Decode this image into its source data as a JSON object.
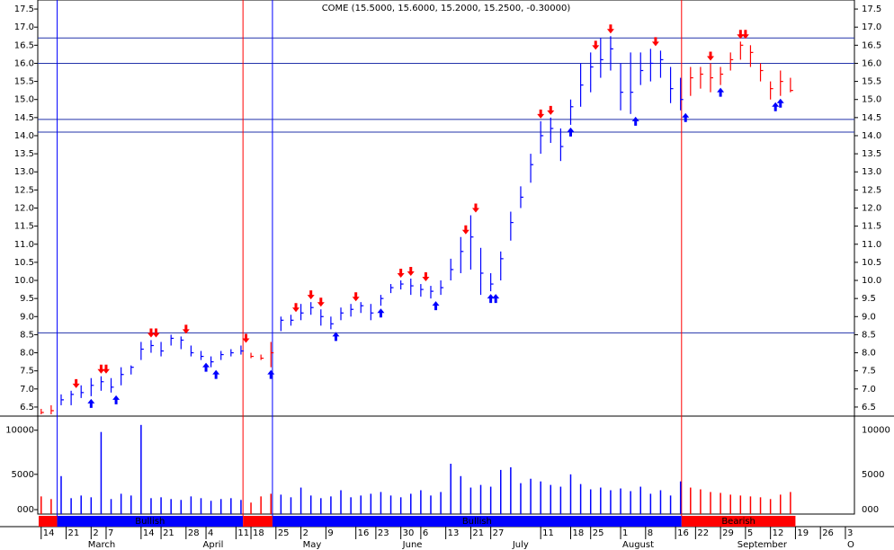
{
  "chart_data": {
    "type": "ohlc",
    "title": "COME (15.5000, 15.6000, 15.2000, 15.2500, -0.30000)",
    "x": [
      0,
      2,
      4,
      6,
      8,
      10,
      12,
      14,
      16,
      18,
      20,
      22,
      24,
      26,
      28,
      30,
      32,
      34,
      36,
      38,
      40,
      42,
      44,
      46,
      48,
      50,
      52,
      54,
      56,
      58,
      60,
      62,
      64,
      66,
      68,
      70,
      72,
      74,
      76,
      78,
      80,
      82,
      84,
      86,
      88,
      90,
      92,
      94,
      96,
      98,
      100,
      102,
      104,
      106,
      108,
      110,
      112,
      114,
      116,
      118,
      120,
      122,
      124,
      126,
      128,
      130,
      132,
      134,
      136,
      138,
      140,
      142,
      144,
      146,
      148,
      150
    ],
    "high": [
      6.45,
      6.55,
      6.85,
      6.95,
      7.1,
      7.3,
      7.35,
      7.3,
      7.6,
      7.65,
      8.3,
      8.35,
      8.3,
      8.5,
      8.45,
      8.2,
      8.05,
      7.9,
      8.05,
      8.1,
      8.2,
      8.0,
      7.95,
      8.3,
      9.0,
      9.05,
      9.35,
      9.4,
      9.2,
      9.0,
      9.25,
      9.35,
      9.4,
      9.35,
      9.6,
      9.9,
      10.0,
      10.05,
      9.9,
      9.85,
      10.0,
      10.6,
      11.2,
      11.8,
      10.9,
      10.2,
      10.8,
      11.9,
      12.6,
      13.5,
      14.4,
      14.5,
      14.2,
      15.0,
      16.0,
      16.3,
      16.7,
      16.75,
      16.0,
      16.3,
      16.3,
      16.4,
      16.35,
      15.9,
      15.6,
      15.9,
      15.9,
      16.0,
      15.9,
      16.3,
      16.6,
      16.5,
      16.0,
      15.5,
      15.8,
      15.6
    ],
    "low": [
      6.3,
      6.3,
      6.55,
      6.55,
      6.75,
      6.8,
      6.95,
      6.9,
      7.1,
      7.4,
      7.8,
      8.0,
      7.9,
      8.2,
      8.1,
      7.9,
      7.8,
      7.6,
      7.8,
      7.9,
      7.95,
      7.85,
      7.8,
      7.6,
      8.6,
      8.75,
      8.9,
      9.05,
      8.75,
      8.65,
      8.9,
      9.0,
      9.1,
      8.9,
      9.3,
      9.65,
      9.75,
      9.6,
      9.55,
      9.5,
      9.6,
      10.0,
      10.2,
      10.3,
      9.6,
      9.7,
      10.0,
      11.1,
      12.0,
      12.7,
      13.5,
      13.8,
      13.3,
      14.3,
      14.8,
      15.2,
      15.6,
      15.8,
      14.7,
      14.6,
      15.4,
      15.5,
      15.6,
      14.9,
      14.7,
      15.1,
      15.3,
      15.2,
      15.4,
      15.8,
      16.1,
      15.9,
      15.5,
      15.0,
      15.1,
      15.2
    ],
    "close": [
      6.35,
      6.4,
      6.7,
      6.85,
      6.9,
      7.1,
      7.2,
      7.05,
      7.4,
      7.6,
      8.1,
      8.2,
      8.05,
      8.4,
      8.35,
      8.0,
      7.9,
      7.75,
      7.95,
      8.0,
      8.05,
      7.9,
      7.85,
      8.0,
      8.9,
      8.9,
      9.1,
      9.25,
      9.0,
      8.8,
      9.1,
      9.2,
      9.3,
      9.1,
      9.5,
      9.8,
      9.9,
      9.85,
      9.75,
      9.7,
      9.8,
      10.3,
      10.8,
      11.2,
      10.2,
      9.9,
      10.6,
      11.6,
      12.3,
      13.2,
      14.0,
      14.2,
      13.7,
      14.8,
      15.4,
      15.9,
      16.1,
      16.4,
      15.2,
      15.2,
      15.8,
      16.0,
      16.1,
      15.3,
      15.0,
      15.6,
      15.7,
      15.6,
      15.7,
      16.1,
      16.5,
      16.3,
      15.8,
      15.3,
      15.5,
      15.25
    ],
    "volume": [
      2500,
      2200,
      4800,
      2300,
      2600,
      2400,
      9800,
      2200,
      2800,
      2600,
      10600,
      2300,
      2400,
      2200,
      2100,
      2500,
      2300,
      2000,
      2200,
      2300,
      2100,
      1800,
      2500,
      2800,
      2700,
      2400,
      3500,
      2600,
      2300,
      2500,
      3200,
      2400,
      2600,
      2800,
      3000,
      2600,
      2400,
      2800,
      3200,
      2600,
      3000,
      6200,
      4800,
      3500,
      3800,
      3600,
      5500,
      5800,
      4000,
      4500,
      4200,
      3800,
      3600,
      5000,
      3900,
      3300,
      3500,
      3200,
      3400,
      3100,
      3600,
      2800,
      3200,
      2600,
      4200,
      3500,
      3300,
      3000,
      2900,
      2700,
      2600,
      2500,
      2400,
      2200,
      2700,
      3000
    ],
    "xlim": [
      -0.5,
      161.5
    ],
    "ylim": [
      6.25,
      17.75
    ],
    "yticks": [
      6.5,
      {
        "value": 7,
        "label": "7.0"
      },
      7.5,
      {
        "value": 8,
        "label": "8.0"
      },
      8.5,
      {
        "value": 9,
        "label": "9.0"
      },
      9.5,
      {
        "value": 10,
        "label": "10.0"
      },
      10.5,
      {
        "value": 11,
        "label": "11.0"
      },
      11.5,
      {
        "value": 12,
        "label": "12.0"
      },
      12.5,
      {
        "value": 13,
        "label": "13.0"
      },
      13.5,
      {
        "value": 14,
        "label": "14.0"
      },
      14.5,
      {
        "value": 15,
        "label": "15.0"
      },
      15.5,
      {
        "value": 16,
        "label": "16.0"
      },
      16.5,
      {
        "value": 17,
        "label": "17.0"
      },
      17.5
    ],
    "volume_ylim": [
      500,
      11600
    ],
    "volume_yticks": [
      {
        "value": 1000,
        "label": "000"
      },
      5000,
      10000
    ],
    "xticks": [
      {
        "value": 0,
        "label": "14"
      },
      {
        "value": 5,
        "label": "21"
      },
      {
        "value": 10,
        "label": "2"
      },
      {
        "value": 13,
        "label": "7"
      },
      {
        "value": 20,
        "label": "14"
      },
      {
        "value": 24,
        "label": "21"
      },
      {
        "value": 29,
        "label": "28"
      },
      {
        "value": 33,
        "label": "4"
      },
      {
        "value": 39,
        "label": "11"
      },
      {
        "value": 42,
        "label": "18"
      },
      {
        "value": 47,
        "label": "25"
      },
      {
        "value": 52,
        "label": "2"
      },
      {
        "value": 57,
        "label": "9"
      },
      {
        "value": 63,
        "label": "16"
      },
      {
        "value": 67,
        "label": "23"
      },
      {
        "value": 72,
        "label": "30"
      },
      {
        "value": 76,
        "label": "6"
      },
      {
        "value": 81,
        "label": "13"
      },
      {
        "value": 86,
        "label": "21"
      },
      {
        "value": 90,
        "label": "27"
      },
      {
        "value": 100,
        "label": "11"
      },
      {
        "value": 106,
        "label": "18"
      },
      {
        "value": 110,
        "label": "25"
      },
      {
        "value": 116,
        "label": "1"
      },
      {
        "value": 121,
        "label": "8"
      },
      {
        "value": 127,
        "label": "16"
      },
      {
        "value": 131,
        "label": "22"
      },
      {
        "value": 136,
        "label": "29"
      },
      {
        "value": 141,
        "label": "5"
      },
      {
        "value": 146,
        "label": "12"
      },
      {
        "value": 151,
        "label": "19"
      },
      {
        "value": 156,
        "label": "26"
      },
      {
        "value": 161,
        "label": "3"
      }
    ],
    "month_ticks": [
      {
        "value": 9,
        "label": "March"
      },
      {
        "value": 32,
        "label": "April"
      },
      {
        "value": 52,
        "label": "May"
      },
      {
        "value": 72,
        "label": "June"
      },
      {
        "value": 94,
        "label": "July"
      },
      {
        "value": 116,
        "label": "August"
      },
      {
        "value": 139,
        "label": "September"
      },
      {
        "value": 161,
        "label": "O"
      }
    ],
    "regimes": [
      {
        "start": -0.5,
        "end": 3.2,
        "color": "#ff0000"
      },
      {
        "start": 3.2,
        "end": 40.4,
        "color": "#0000ff",
        "label": "Bullish"
      },
      {
        "start": 40.4,
        "end": 46.3,
        "color": "#ff0000"
      },
      {
        "start": 46.3,
        "end": 128.2,
        "color": "#0000ff",
        "label": "Bullish"
      },
      {
        "start": 128.2,
        "end": 151,
        "color": "#ff0000",
        "label": "Bearish"
      }
    ],
    "levels": [
      {
        "value": 16.7,
        "color": "#2233aa"
      },
      {
        "value": 16.0,
        "color": "#2233aa"
      },
      {
        "value": 14.45,
        "color": "#2233aa"
      },
      {
        "value": 14.1,
        "color": "#2233aa"
      },
      {
        "value": 8.55,
        "color": "#2233aa"
      }
    ],
    "buy_signals": [
      10,
      15,
      33,
      35,
      46,
      59,
      68,
      79,
      90,
      91,
      106,
      119,
      129,
      136,
      147,
      148
    ],
    "sell_signals": [
      7,
      12,
      13,
      22,
      23,
      29,
      41,
      51,
      54,
      56,
      63,
      72,
      74,
      77,
      85,
      87,
      100,
      102,
      111,
      114,
      123,
      134,
      140,
      141
    ],
    "buy_color": "#0000ff",
    "sell_color": "#ff0000"
  }
}
